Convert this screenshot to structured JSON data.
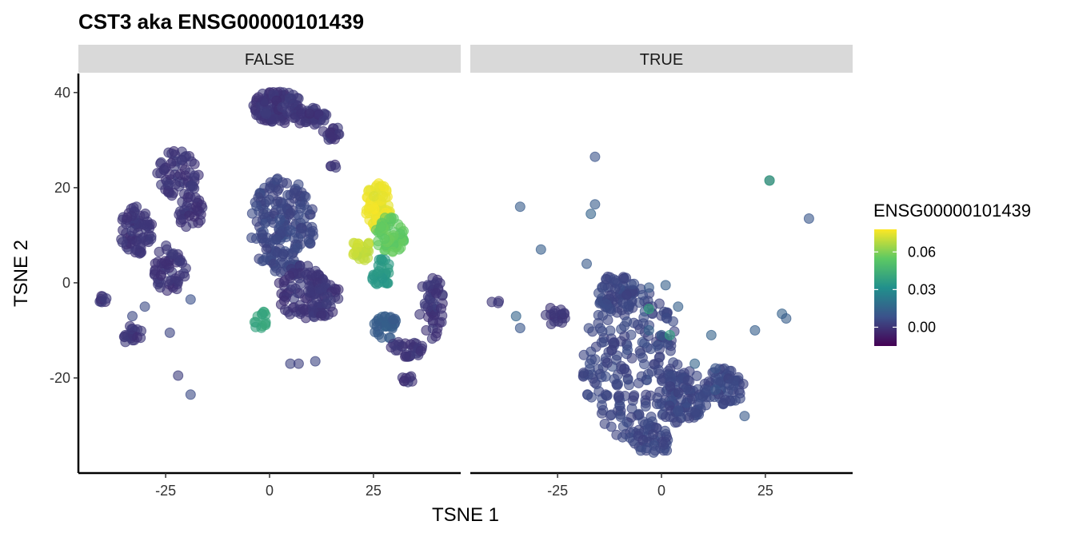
{
  "chart_data": {
    "type": "scatter",
    "title": "CST3  aka ENSG00000101439",
    "xlabel": "TSNE 1",
    "ylabel": "TSNE 2",
    "xlim": [
      -46,
      46
    ],
    "ylim": [
      -40,
      44
    ],
    "x_ticks": [
      -25,
      0,
      25
    ],
    "y_ticks": [
      -20,
      0,
      20,
      40
    ],
    "facets": [
      {
        "label": "FALSE",
        "clusters": [
          {
            "type": "ellipse",
            "cx": 2,
            "cy": 37,
            "rx": 6,
            "ry": 3.5,
            "n": 110,
            "value": 0.0
          },
          {
            "type": "blob",
            "cx": 10,
            "cy": 35,
            "rx": 4,
            "ry": 2,
            "n": 40,
            "value": 0.0
          },
          {
            "type": "blob",
            "cx": 15,
            "cy": 31.5,
            "rx": 2.5,
            "ry": 1.5,
            "n": 18,
            "value": 0.0
          },
          {
            "type": "blob",
            "cx": -22,
            "cy": 23,
            "rx": 5,
            "ry": 5,
            "n": 60,
            "value": 0.0
          },
          {
            "type": "blob",
            "cx": -19,
            "cy": 15,
            "rx": 3,
            "ry": 4,
            "n": 35,
            "value": 0.0
          },
          {
            "type": "ellipse",
            "cx": -32,
            "cy": 11,
            "rx": 4,
            "ry": 5,
            "n": 70,
            "value": 0.0
          },
          {
            "type": "ellipse",
            "cx": -24,
            "cy": 3,
            "rx": 4,
            "ry": 5,
            "n": 55,
            "value": 0.0
          },
          {
            "type": "blob",
            "cx": -33,
            "cy": -11,
            "rx": 2.5,
            "ry": 2,
            "n": 20,
            "value": 0.0
          },
          {
            "type": "blob",
            "cx": -41,
            "cy": -3.5,
            "rx": 2,
            "ry": 1,
            "n": 8,
            "value": 0.0
          },
          {
            "type": "ellipse",
            "cx": 3,
            "cy": 12,
            "rx": 8,
            "ry": 10,
            "n": 190,
            "value": 0.005
          },
          {
            "type": "ellipse",
            "cx": 8,
            "cy": -2,
            "rx": 6,
            "ry": 6,
            "n": 90,
            "value": 0.0
          },
          {
            "type": "blob",
            "cx": 13,
            "cy": -3,
            "rx": 4,
            "ry": 4,
            "n": 40,
            "value": 0.0
          },
          {
            "type": "blob",
            "cx": -2,
            "cy": -8,
            "rx": 2,
            "ry": 2,
            "n": 14,
            "value": 0.04
          },
          {
            "type": "blob",
            "cx": 26,
            "cy": 16,
            "rx": 3,
            "ry": 5,
            "n": 70,
            "value": 0.075
          },
          {
            "type": "blob",
            "cx": 22,
            "cy": 7,
            "rx": 2.5,
            "ry": 2.5,
            "n": 30,
            "value": 0.07
          },
          {
            "type": "blob",
            "cx": 29,
            "cy": 10,
            "rx": 3.5,
            "ry": 4,
            "n": 60,
            "value": 0.055
          },
          {
            "type": "blob",
            "cx": 27,
            "cy": 2,
            "rx": 2.5,
            "ry": 3,
            "n": 30,
            "value": 0.035
          },
          {
            "type": "blob",
            "cx": 28,
            "cy": -9,
            "rx": 3,
            "ry": 3,
            "n": 35,
            "value": 0.012
          },
          {
            "type": "blob",
            "cx": 33,
            "cy": -14,
            "rx": 4,
            "ry": 2,
            "n": 30,
            "value": 0.0
          },
          {
            "type": "blob",
            "cx": 39,
            "cy": -5,
            "rx": 3,
            "ry": 7,
            "n": 50,
            "value": 0.0
          },
          {
            "type": "blob",
            "cx": 33,
            "cy": -20.5,
            "rx": 2,
            "ry": 1,
            "n": 8,
            "value": 0.0
          },
          {
            "type": "blob",
            "cx": 15.5,
            "cy": 24.5,
            "rx": 1,
            "ry": 0.6,
            "n": 4,
            "value": 0.0
          },
          {
            "type": "points",
            "points": [
              [
                -22,
                -19.5
              ],
              [
                -19,
                -23.5
              ],
              [
                -19,
                -3.5
              ],
              [
                -24,
                -10.5
              ],
              [
                5,
                -17
              ],
              [
                7,
                -17
              ],
              [
                11,
                -16.5
              ],
              [
                -33,
                -7
              ],
              [
                -30,
                -5
              ]
            ],
            "value": 0.005
          }
        ]
      },
      {
        "label": "TRUE",
        "clusters": [
          {
            "type": "ellipse",
            "cx": -7,
            "cy": -17,
            "rx": 12,
            "ry": 16,
            "n": 240,
            "value": 0.005
          },
          {
            "type": "ellipse",
            "cx": -11,
            "cy": -2,
            "rx": 5,
            "ry": 4,
            "n": 60,
            "value": 0.005
          },
          {
            "type": "blob",
            "cx": 5,
            "cy": -24,
            "rx": 6,
            "ry": 6,
            "n": 80,
            "value": 0.005
          },
          {
            "type": "blob",
            "cx": 15,
            "cy": -22,
            "rx": 5,
            "ry": 4,
            "n": 60,
            "value": 0.005
          },
          {
            "type": "blob",
            "cx": -2,
            "cy": -33,
            "rx": 5,
            "ry": 3,
            "n": 40,
            "value": 0.005
          },
          {
            "type": "blob",
            "cx": -26,
            "cy": -7,
            "rx": 3,
            "ry": 2,
            "n": 18,
            "value": 0.0
          },
          {
            "type": "blob",
            "cx": -40,
            "cy": -4,
            "rx": 1,
            "ry": 0.5,
            "n": 3,
            "value": 0.0
          },
          {
            "type": "points",
            "points": [
              [
                -16,
                26.5
              ],
              [
                -16,
                16.5
              ],
              [
                -17,
                14.5
              ],
              [
                -34,
                16
              ],
              [
                -29,
                7
              ],
              [
                -18,
                4
              ],
              [
                -3,
                -1
              ],
              [
                1,
                -0.5
              ],
              [
                4,
                -5
              ],
              [
                -4,
                -6
              ],
              [
                -3,
                -10
              ],
              [
                0,
                -11
              ],
              [
                12,
                -11
              ],
              [
                26,
                21.5
              ],
              [
                35.5,
                13.5
              ],
              [
                22.5,
                -10
              ],
              [
                29,
                -6.5
              ],
              [
                30,
                -7.5
              ],
              [
                -35,
                -7
              ],
              [
                -34,
                -9.5
              ],
              [
                8,
                -17
              ],
              [
                13,
                -18
              ],
              [
                20,
                -28
              ],
              [
                13,
                -22.5
              ]
            ],
            "value": 0.012
          },
          {
            "type": "points",
            "points": [
              [
                -3,
                -5.5
              ],
              [
                2,
                -11
              ],
              [
                26,
                21.5
              ]
            ],
            "value": 0.04
          }
        ]
      }
    ],
    "legend": {
      "title": "ENSG00000101439",
      "position": "right",
      "min": -0.015,
      "max": 0.078,
      "breaks": [
        0.0,
        0.03,
        0.06
      ],
      "break_labels": [
        "0.00",
        "0.03",
        "0.06"
      ],
      "colormap": "viridis"
    }
  }
}
